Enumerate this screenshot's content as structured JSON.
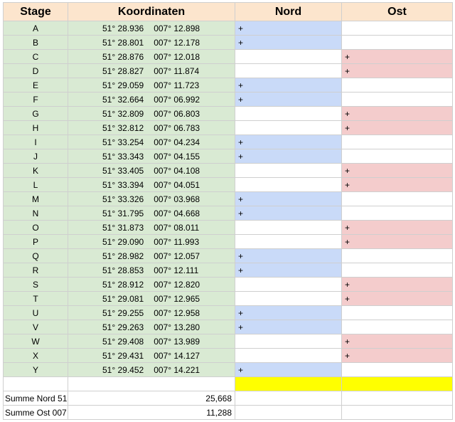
{
  "header": {
    "stage": "Stage",
    "koordinaten": "Koordinaten",
    "nord": "Nord",
    "ost": "Ost"
  },
  "rows": [
    [
      "A",
      "51° 28.936",
      "007° 12.898",
      "+",
      null
    ],
    [
      "B",
      "51° 28.801",
      "007° 12.178",
      "+",
      null
    ],
    [
      "C",
      "51° 28.876",
      "007° 12.018",
      null,
      "+"
    ],
    [
      "D",
      "51° 28.827",
      "007° 11.874",
      null,
      "+"
    ],
    [
      "E",
      "51° 29.059",
      "007° 11.723",
      "+",
      null
    ],
    [
      "F",
      "51° 32.664",
      "007° 06.992",
      "+",
      null
    ],
    [
      "G",
      "51° 32.809",
      "007° 06.803",
      null,
      "+"
    ],
    [
      "H",
      "51° 32.812",
      "007° 06.783",
      null,
      "+"
    ],
    [
      "I",
      "51° 33.254",
      "007° 04.234",
      "+",
      null
    ],
    [
      "J",
      "51° 33.343",
      "007° 04.155",
      "+",
      null
    ],
    [
      "K",
      "51° 33.405",
      "007° 04.108",
      null,
      "+"
    ],
    [
      "L",
      "51° 33.394",
      "007° 04.051",
      null,
      "+"
    ],
    [
      "M",
      "51° 33.326",
      "007° 03.968",
      "+",
      null
    ],
    [
      "N",
      "51° 31.795",
      "007° 04.668",
      "+",
      null
    ],
    [
      "O",
      "51° 31.873",
      "007° 08.011",
      null,
      "+"
    ],
    [
      "P",
      "51° 29.090",
      "007° 11.993",
      null,
      "+"
    ],
    [
      "Q",
      "51° 28.982",
      "007° 12.057",
      "+",
      null
    ],
    [
      "R",
      "51° 28.853",
      "007° 12.111",
      "+",
      null
    ],
    [
      "S",
      "51° 28.912",
      "007° 12.820",
      null,
      "+"
    ],
    [
      "T",
      "51° 29.081",
      "007° 12.965",
      null,
      "+"
    ],
    [
      "U",
      "51° 29.255",
      "007° 12.958",
      "+",
      null
    ],
    [
      "V",
      "51° 29.263",
      "007° 13.280",
      "+",
      null
    ],
    [
      "W",
      "51° 29.408",
      "007° 13.989",
      null,
      "+"
    ],
    [
      "X",
      "51° 29.431",
      "007° 14.127",
      null,
      "+"
    ],
    [
      "Y",
      "51° 29.452",
      "007° 14.221",
      "+",
      null
    ]
  ],
  "summary": [
    {
      "label": "Summe Nord 51",
      "value": "25,668"
    },
    {
      "label": "Summe Ost 007",
      "value": "11,288"
    }
  ]
}
